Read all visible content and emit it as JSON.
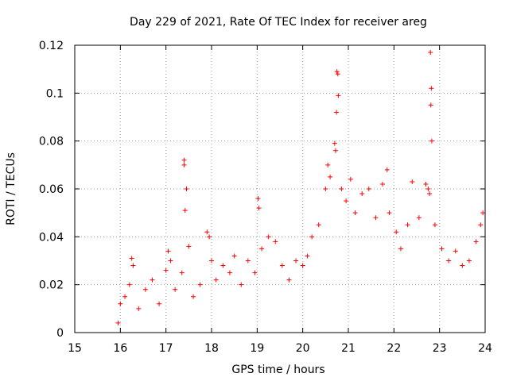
{
  "chart_data": {
    "type": "scatter",
    "title": "Day 229 of 2021, Rate Of TEC Index for receiver areg",
    "xlabel": "GPS time / hours",
    "ylabel": "ROTI / TECUs",
    "xlim": [
      15,
      24
    ],
    "ylim": [
      0,
      0.12
    ],
    "x_ticks": [
      15,
      16,
      17,
      18,
      19,
      20,
      21,
      22,
      23,
      24
    ],
    "x_tick_labels": [
      "15",
      "16",
      "17",
      "18",
      "19",
      "20",
      "21",
      "22",
      "23",
      "24"
    ],
    "y_ticks": [
      0,
      0.02,
      0.04,
      0.06,
      0.08,
      0.1,
      0.12
    ],
    "y_tick_labels": [
      "0",
      "0.02",
      "0.04",
      "0.06",
      "0.08",
      "0.1",
      "0.12"
    ],
    "grid": true,
    "marker": "+",
    "color": "#ff0000",
    "series": [
      {
        "points": [
          [
            15.95,
            0.004
          ],
          [
            16.0,
            0.012
          ],
          [
            16.1,
            0.015
          ],
          [
            16.2,
            0.02
          ],
          [
            16.25,
            0.031
          ],
          [
            16.28,
            0.028
          ],
          [
            16.4,
            0.01
          ],
          [
            16.55,
            0.018
          ],
          [
            16.7,
            0.022
          ],
          [
            16.85,
            0.012
          ],
          [
            17.0,
            0.026
          ],
          [
            17.05,
            0.034
          ],
          [
            17.1,
            0.03
          ],
          [
            17.2,
            0.018
          ],
          [
            17.35,
            0.025
          ],
          [
            17.4,
            0.072
          ],
          [
            17.4,
            0.07
          ],
          [
            17.45,
            0.06
          ],
          [
            17.42,
            0.051
          ],
          [
            17.5,
            0.036
          ],
          [
            17.6,
            0.015
          ],
          [
            17.75,
            0.02
          ],
          [
            17.9,
            0.042
          ],
          [
            17.95,
            0.04
          ],
          [
            18.0,
            0.03
          ],
          [
            18.1,
            0.022
          ],
          [
            18.25,
            0.028
          ],
          [
            18.4,
            0.025
          ],
          [
            18.5,
            0.032
          ],
          [
            18.65,
            0.02
          ],
          [
            18.8,
            0.03
          ],
          [
            18.95,
            0.025
          ],
          [
            19.02,
            0.056
          ],
          [
            19.04,
            0.052
          ],
          [
            19.1,
            0.035
          ],
          [
            19.25,
            0.04
          ],
          [
            19.4,
            0.038
          ],
          [
            19.55,
            0.028
          ],
          [
            19.7,
            0.022
          ],
          [
            19.85,
            0.03
          ],
          [
            20.0,
            0.028
          ],
          [
            20.1,
            0.032
          ],
          [
            20.2,
            0.04
          ],
          [
            20.35,
            0.045
          ],
          [
            20.5,
            0.06
          ],
          [
            20.55,
            0.07
          ],
          [
            20.6,
            0.065
          ],
          [
            20.7,
            0.079
          ],
          [
            20.72,
            0.076
          ],
          [
            20.75,
            0.109
          ],
          [
            20.77,
            0.108
          ],
          [
            20.78,
            0.099
          ],
          [
            20.74,
            0.092
          ],
          [
            20.85,
            0.06
          ],
          [
            20.95,
            0.055
          ],
          [
            21.05,
            0.064
          ],
          [
            21.15,
            0.05
          ],
          [
            21.3,
            0.058
          ],
          [
            21.45,
            0.06
          ],
          [
            21.6,
            0.048
          ],
          [
            21.75,
            0.062
          ],
          [
            21.85,
            0.068
          ],
          [
            21.9,
            0.05
          ],
          [
            22.05,
            0.042
          ],
          [
            22.15,
            0.035
          ],
          [
            22.3,
            0.045
          ],
          [
            22.4,
            0.063
          ],
          [
            22.55,
            0.048
          ],
          [
            22.7,
            0.062
          ],
          [
            22.75,
            0.06
          ],
          [
            22.78,
            0.058
          ],
          [
            22.8,
            0.117
          ],
          [
            22.82,
            0.102
          ],
          [
            22.81,
            0.095
          ],
          [
            22.83,
            0.08
          ],
          [
            22.9,
            0.045
          ],
          [
            23.05,
            0.035
          ],
          [
            23.2,
            0.03
          ],
          [
            23.35,
            0.034
          ],
          [
            23.5,
            0.028
          ],
          [
            23.65,
            0.03
          ],
          [
            23.8,
            0.038
          ],
          [
            23.9,
            0.045
          ],
          [
            23.95,
            0.05
          ]
        ]
      }
    ]
  }
}
